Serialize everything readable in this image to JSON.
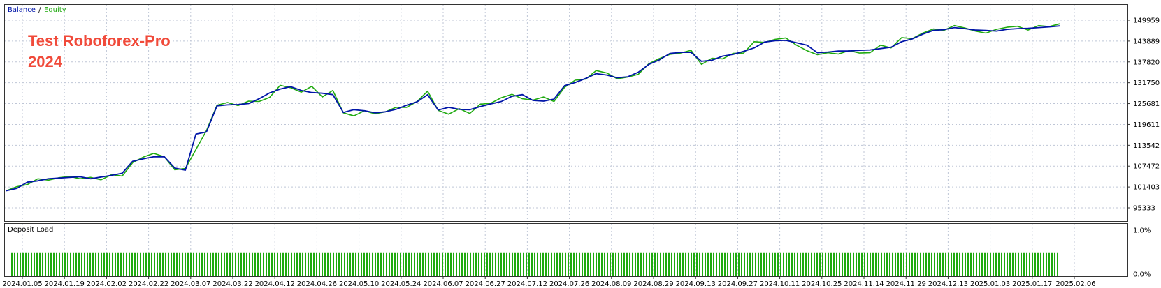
{
  "overlay_title": [
    "Test Roboforex-Pro",
    "2024"
  ],
  "legend": {
    "balance": "Balance",
    "separator": " / ",
    "equity": "Equity"
  },
  "panel_label": "Deposit Load",
  "colors": {
    "balance": "#0015a8",
    "equity": "#1faa0f",
    "load": "#1faa0f",
    "grid": "#bfc6d6",
    "title": "#f04a3a"
  },
  "chart_data": [
    {
      "type": "line",
      "ylim": [
        95333,
        149959
      ],
      "y_ticks": [
        "149959",
        "143889",
        "137820",
        "131750",
        "125681",
        "119611",
        "113542",
        "107472",
        "101403",
        "95333"
      ],
      "x_ticks": [
        "2024.01.05",
        "2024.01.19",
        "2024.02.02",
        "2024.02.22",
        "2024.03.07",
        "2024.03.22",
        "2024.04.12",
        "2024.04.26",
        "2024.05.10",
        "2024.05.24",
        "2024.06.07",
        "2024.06.27",
        "2024.07.12",
        "2024.07.26",
        "2024.08.09",
        "2024.08.29",
        "2024.09.13",
        "2024.09.27",
        "2024.10.11",
        "2024.10.25",
        "2024.11.14",
        "2024.11.29",
        "2024.12.13",
        "2025.01.03",
        "2025.01.17",
        "2025.02.06"
      ],
      "x_index": [
        0,
        1,
        2,
        3,
        4,
        5,
        6,
        7,
        8,
        9,
        10,
        11,
        12,
        13,
        14,
        15,
        16,
        17,
        18,
        19,
        20,
        21,
        22,
        23,
        24,
        25,
        26,
        27,
        28,
        29,
        30,
        31,
        32,
        33,
        34,
        35,
        36,
        37,
        38,
        39,
        40,
        41,
        42,
        43,
        44,
        45,
        46,
        47,
        48,
        49,
        50,
        51,
        52,
        53,
        54,
        55,
        56,
        57,
        58,
        59,
        60,
        61,
        62,
        63,
        64,
        65,
        66,
        67,
        68,
        69,
        70,
        71,
        72,
        73,
        74,
        75,
        76,
        77,
        78,
        79,
        80,
        81,
        82,
        83,
        84,
        85,
        86,
        87,
        88,
        89,
        90,
        91,
        92,
        93,
        94,
        95,
        96,
        97,
        98,
        99,
        100
      ],
      "series": [
        {
          "name": "Balance",
          "values": [
            100300,
            101000,
            102800,
            103200,
            103800,
            104000,
            104200,
            104400,
            103800,
            104300,
            104800,
            105400,
            108900,
            109600,
            110200,
            110200,
            106900,
            106300,
            116800,
            117400,
            125000,
            125300,
            125400,
            125700,
            127100,
            128800,
            129900,
            130600,
            129500,
            128900,
            128700,
            128300,
            123100,
            123900,
            123600,
            123000,
            123300,
            124000,
            125200,
            126200,
            128300,
            123800,
            124600,
            124000,
            123900,
            124800,
            125600,
            126300,
            127800,
            128300,
            126600,
            126400,
            127000,
            130900,
            131800,
            133000,
            134400,
            134000,
            133200,
            133500,
            134800,
            137100,
            138400,
            140300,
            140600,
            140600,
            138000,
            138300,
            139500,
            140000,
            140900,
            141900,
            143600,
            144000,
            144100,
            143400,
            142700,
            140500,
            140700,
            141000,
            141000,
            141200,
            141300,
            141700,
            142100,
            143700,
            144500,
            145900,
            147000,
            147200,
            147800,
            147500,
            147100,
            147000,
            146800,
            147300,
            147500,
            147600,
            147800,
            148000,
            148300
          ],
          "color": "#0015a8"
        },
        {
          "name": "Equity",
          "values": [
            100300,
            101500,
            102100,
            103800,
            103400,
            104100,
            104500,
            103800,
            104200,
            103500,
            105000,
            104600,
            108500,
            110100,
            111200,
            110200,
            106400,
            106800,
            112300,
            117800,
            125200,
            126000,
            125100,
            126400,
            126300,
            127500,
            131000,
            130300,
            129000,
            130700,
            127600,
            129500,
            123000,
            122100,
            123600,
            122700,
            123300,
            124600,
            124600,
            126300,
            129300,
            123700,
            122600,
            124200,
            122800,
            125500,
            125800,
            127400,
            128400,
            127100,
            126700,
            127600,
            126300,
            130400,
            132500,
            132800,
            135300,
            134600,
            132900,
            133400,
            134200,
            137300,
            138800,
            140000,
            140400,
            141200,
            137100,
            138900,
            138700,
            140300,
            140400,
            143700,
            143500,
            144400,
            144800,
            142700,
            141100,
            139900,
            140500,
            140100,
            141100,
            140400,
            140500,
            142700,
            141900,
            144900,
            144600,
            146200,
            147400,
            147000,
            148400,
            147700,
            146800,
            146200,
            147300,
            147900,
            148200,
            147100,
            148400,
            148100,
            148900
          ],
          "color": "#1faa0f"
        }
      ]
    },
    {
      "type": "bar",
      "title": "Deposit Load",
      "ylim": [
        0.0,
        1.0
      ],
      "y_ticks": [
        "1.0%",
        "0.0%"
      ],
      "values_percent": [
        0.48,
        0.48,
        0.48,
        0.48,
        0.48,
        0.48,
        0.48,
        0.48,
        0.48,
        0.48,
        0.48,
        0.48,
        0.48,
        0.48,
        0.48,
        0.48,
        0.48,
        0.48,
        0.48,
        0.48,
        0.48,
        0.48,
        0.48,
        0.48,
        0.48,
        0.48,
        0.48,
        0.48,
        0.48,
        0.48,
        0.48,
        0.48,
        0.48,
        0.48,
        0.48,
        0.48,
        0.48,
        0.48,
        0.48,
        0.48,
        0.48,
        0.48,
        0.48,
        0.48,
        0.48,
        0.48,
        0.48,
        0.48,
        0.48,
        0.48,
        0.48,
        0.48,
        0.48,
        0.48,
        0.48,
        0.48,
        0.48,
        0.48,
        0.48,
        0.48,
        0.48,
        0.48,
        0.48,
        0.48,
        0.48,
        0.48,
        0.48,
        0.48,
        0.48,
        0.48,
        0.48,
        0.48,
        0.48,
        0.48,
        0.48,
        0.48,
        0.48,
        0.48,
        0.48,
        0.48,
        0.48,
        0.48,
        0.48,
        0.48,
        0.48,
        0.48,
        0.48,
        0.48,
        0.48,
        0.48,
        0.48,
        0.48,
        0.48,
        0.48,
        0.48,
        0.48,
        0.48,
        0.48,
        0.48,
        0.48,
        0.48,
        0.48,
        0.48,
        0.48,
        0.48,
        0.48,
        0.48,
        0.48,
        0.48,
        0.48,
        0.48,
        0.48,
        0.48,
        0.48,
        0.48,
        0.48,
        0.48,
        0.48,
        0.48,
        0.48,
        0.48,
        0.48,
        0.48,
        0.48,
        0.48,
        0.48,
        0.48,
        0.48,
        0.48,
        0.48,
        0.48,
        0.48,
        0.48,
        0.48,
        0.48,
        0.48,
        0.48,
        0.48,
        0.48,
        0.48,
        0.48,
        0.48,
        0.48,
        0.48,
        0.48,
        0.48,
        0.48,
        0.48,
        0.48,
        0.48,
        0.48,
        0.48,
        0.48,
        0.48,
        0.48,
        0.48,
        0.48,
        0.48,
        0.48,
        0.48,
        0.48,
        0.48,
        0.48,
        0.48,
        0.48,
        0.48,
        0.48,
        0.48,
        0.48,
        0.48,
        0.48,
        0.48,
        0.48,
        0.48,
        0.48,
        0.48,
        0.48,
        0.48,
        0.48,
        0.48,
        0.48,
        0.48,
        0.48,
        0.48,
        0.48,
        0.48,
        0.48,
        0.48,
        0.48,
        0.48,
        0.48,
        0.48,
        0.48,
        0.48,
        0.48,
        0.48,
        0.48,
        0.48,
        0.48,
        0.48,
        0.48,
        0.48,
        0.48,
        0.48,
        0.48,
        0.48,
        0.48,
        0.48,
        0.48,
        0.48,
        0.48,
        0.48,
        0.48,
        0.48,
        0.48,
        0.48,
        0.48,
        0.48,
        0.48,
        0.48,
        0.48,
        0.48,
        0.48,
        0.48,
        0.48,
        0.48,
        0.48,
        0.48,
        0.48,
        0.48,
        0.48,
        0.48,
        0.48,
        0.48,
        0.48,
        0.48,
        0.48,
        0.48,
        0.48,
        0.48,
        0.48,
        0.48,
        0.48,
        0.48,
        0.48,
        0.48,
        0.48,
        0.48,
        0.48,
        0.48,
        0.48,
        0.48,
        0.48,
        0.48,
        0.48,
        0.48,
        0.48,
        0.48,
        0.48,
        0.48,
        0.48,
        0.48,
        0.48,
        0.48,
        0.48,
        0.48,
        0.48,
        0.48,
        0.48,
        0.48,
        0.48,
        0.48,
        0.48,
        0.48,
        0.48,
        0.48,
        0.48,
        0.48,
        0.48,
        0.48,
        0.48,
        0.48,
        0.48,
        0.48,
        0.48,
        0.48,
        0.48,
        0.48,
        0.48,
        0.48,
        0.48,
        0.48,
        0.48,
        0.48,
        0.48,
        0.48,
        0.48,
        0.48,
        0.48,
        0.48,
        0.48,
        0.48,
        0.48,
        0.48,
        0.48,
        0.48,
        0.48,
        0.48,
        0.48,
        0.48,
        0.48,
        0.48,
        0.48,
        0.48,
        0.48,
        0.48,
        0.48,
        0.48,
        0.48,
        0.48,
        0.48,
        0.48,
        0.48,
        0.48,
        0.48,
        0.48,
        0.48,
        0.48,
        0.48,
        0.48,
        0.48,
        0.48,
        0.48,
        0.48,
        0.48,
        0.48,
        0.48,
        0.48,
        0.48,
        0.48,
        0.48,
        0.48,
        0.48,
        0.48,
        0.48,
        0.48,
        0.48,
        0.48,
        0.48,
        0.48,
        0.48,
        0.48,
        0.48,
        0.48,
        0.48,
        0.48,
        0.48,
        0.48,
        0.48,
        0.48,
        0.48,
        0.48,
        0.48,
        0.48,
        0.48,
        0.48,
        0.48,
        0.48,
        0.48,
        0.48,
        0.48,
        0.48,
        0.48,
        0.48,
        0.48
      ]
    }
  ]
}
